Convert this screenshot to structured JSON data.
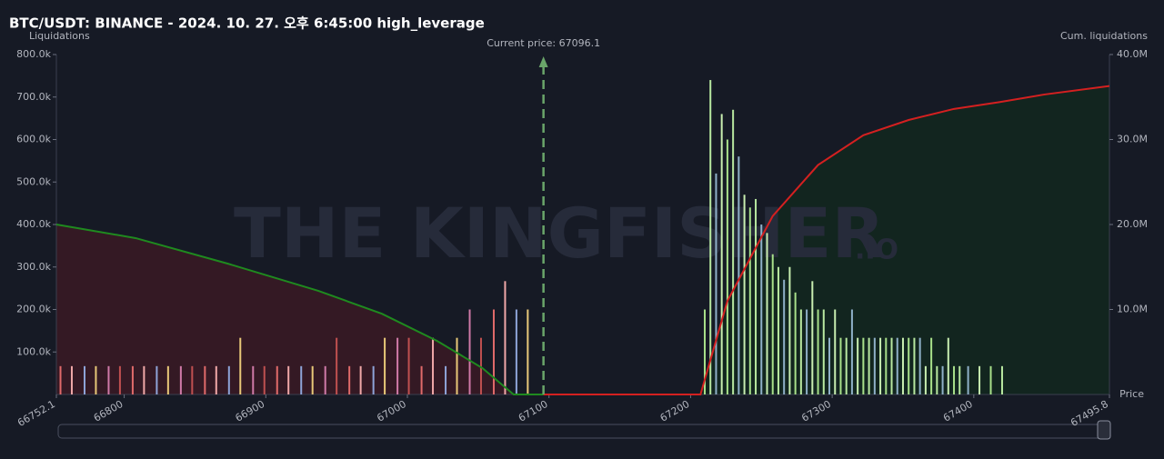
{
  "chart_data": {
    "type": "bar",
    "title": "BTC/USDT: BINANCE - 2024. 10. 27. 오후 6:45:00 high_leverage",
    "y_label": "Liquidations",
    "y2_label": "Cum. liquidations",
    "x_label": "Price",
    "watermark": "THE KINGFISHER",
    "watermark_suffix": ".IO",
    "current_price": 67096.1,
    "current_price_label": "Current price: 67096.1",
    "xlim": [
      66752.1,
      67495.8
    ],
    "xticks": [
      66752.1,
      66800,
      66900,
      67000,
      67100,
      67200,
      67300,
      67400,
      67495.8
    ],
    "ylim": [
      0,
      800000
    ],
    "yticks": [
      {
        "value": 100000,
        "label": "100.0k"
      },
      {
        "value": 200000,
        "label": "200.0k"
      },
      {
        "value": 300000,
        "label": "300.0k"
      },
      {
        "value": 400000,
        "label": "400.0k"
      },
      {
        "value": 500000,
        "label": "500.0k"
      },
      {
        "value": 600000,
        "label": "600.0k"
      },
      {
        "value": 700000,
        "label": "700.0k"
      },
      {
        "value": 800000,
        "label": "800.0k"
      }
    ],
    "y2lim": [
      0,
      40000000
    ],
    "y2ticks": [
      {
        "value": 10000000,
        "label": "10.0M"
      },
      {
        "value": 20000000,
        "label": "20.0M"
      },
      {
        "value": 30000000,
        "label": "30.0M"
      },
      {
        "value": 40000000,
        "label": "40.0M"
      }
    ],
    "series": [
      {
        "type": "bar",
        "palette": [
          "#e06a6a",
          "#f0a8a8",
          "#8ea4d8",
          "#e8c878",
          "#d07aa8",
          "#c05050"
        ],
        "x": [
          66755,
          66763,
          66772,
          66780,
          66789,
          66797,
          66806,
          66814,
          66823,
          66831,
          66840,
          66848,
          66857,
          66865,
          66874,
          66882,
          66891,
          66899,
          66908,
          66916,
          66925,
          66933,
          66942,
          66950,
          66959,
          66967,
          66976,
          66984,
          66993,
          67001,
          67010,
          67018,
          67027,
          67035,
          67044,
          67052,
          67061,
          67069,
          67077,
          67085
        ],
        "values": [
          66700,
          66700,
          66700,
          66700,
          66700,
          66700,
          66700,
          66700,
          66700,
          66700,
          66700,
          66700,
          66700,
          66700,
          66700,
          133300,
          66700,
          66700,
          66700,
          66700,
          66700,
          66700,
          66700,
          133300,
          66700,
          66700,
          66700,
          133300,
          133300,
          133300,
          66700,
          133300,
          66700,
          133300,
          200000,
          133300,
          200000,
          266700,
          200000,
          200000
        ]
      },
      {
        "type": "bar",
        "palette": [
          "#a8e08a",
          "#b8e8a0",
          "#8fb0c8",
          "#c8eeb0"
        ],
        "x": [
          67210,
          67214,
          67218,
          67222,
          67226,
          67230,
          67234,
          67238,
          67242,
          67246,
          67250,
          67254,
          67258,
          67262,
          67266,
          67270,
          67274,
          67278,
          67282,
          67286,
          67290,
          67294,
          67298,
          67302,
          67306,
          67310,
          67314,
          67318,
          67322,
          67326,
          67330,
          67334,
          67338,
          67342,
          67346,
          67350,
          67354,
          67358,
          67362,
          67366,
          67370,
          67374,
          67378,
          67382,
          67386,
          67390,
          67396,
          67404,
          67412,
          67420
        ],
        "values": [
          200000,
          740000,
          520000,
          660000,
          600000,
          670000,
          560000,
          470000,
          440000,
          460000,
          400000,
          380000,
          330000,
          300000,
          270000,
          300000,
          240000,
          200000,
          200000,
          266700,
          200000,
          200000,
          133300,
          200000,
          133300,
          133300,
          200000,
          133300,
          133300,
          133300,
          133300,
          133300,
          133300,
          133300,
          133300,
          133300,
          133300,
          133300,
          133300,
          66700,
          133300,
          66700,
          66700,
          133300,
          66700,
          66700,
          66700,
          66700,
          66700,
          66700
        ]
      },
      {
        "type": "line",
        "axis": "y2",
        "color": "#1f8a1f",
        "fill": "#3a1a24",
        "x": [
          66752.1,
          66808,
          66873,
          66937,
          66982,
          67021,
          67053,
          67075,
          67096.1
        ],
        "values": [
          20000000,
          18400000,
          15400000,
          12200000,
          9500000,
          6300000,
          3100000,
          0,
          0
        ]
      },
      {
        "type": "line",
        "axis": "y2",
        "color": "#d42020",
        "fill": "#12281e",
        "x": [
          67096.1,
          67207,
          67226,
          67258,
          67290,
          67322,
          67354,
          67386,
          67418,
          67450,
          67495.8
        ],
        "values": [
          0,
          0,
          11000000,
          21000000,
          27000000,
          30500000,
          32300000,
          33600000,
          34400000,
          35300000,
          36300000
        ]
      }
    ]
  }
}
